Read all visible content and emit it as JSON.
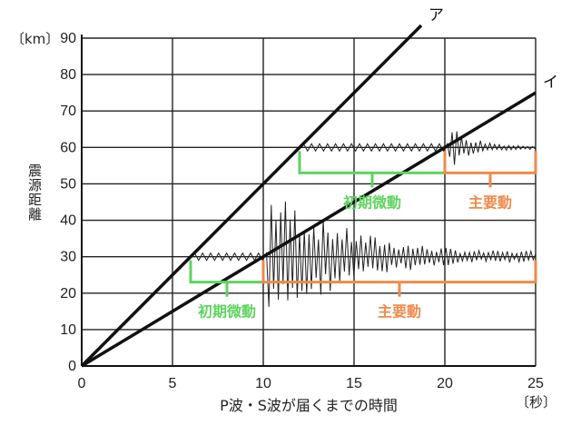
{
  "chart_data": {
    "type": "line",
    "xlabel": "P波・S波が届くまでの時間",
    "x_unit": "〔秒〕",
    "ylabel": "震源距離",
    "y_unit": "〔km〕",
    "xlim": [
      0,
      25
    ],
    "ylim": [
      0,
      90
    ],
    "xticks": [
      0,
      5,
      10,
      15,
      20,
      25
    ],
    "yticks": [
      0,
      10,
      20,
      30,
      40,
      50,
      60,
      70,
      80,
      90
    ],
    "x_tick_labels": [
      "0",
      "5",
      "10",
      "15",
      "20",
      "25"
    ],
    "y_tick_labels": [
      "0",
      "10",
      "20",
      "30",
      "40",
      "50",
      "60",
      "70",
      "80",
      "90"
    ],
    "grid": true,
    "series": [
      {
        "name": "ア",
        "x": [
          0,
          18.7
        ],
        "y": [
          0,
          93.5
        ]
      },
      {
        "name": "イ",
        "x": [
          0,
          25
        ],
        "y": [
          0,
          75
        ]
      }
    ],
    "seismograms": [
      {
        "distance_km": 30,
        "p_arrival_s": 6,
        "s_arrival_s": 10,
        "end_s": 25
      },
      {
        "distance_km": 60,
        "p_arrival_s": 12,
        "s_arrival_s": 20,
        "end_s": 25
      }
    ],
    "annotations": [
      {
        "text": "初期微動",
        "color": "#5fd35f",
        "x_range": [
          6,
          10
        ],
        "at_km": 30
      },
      {
        "text": "主要動",
        "color": "#f08a4b",
        "x_range": [
          10,
          25
        ],
        "at_km": 30
      },
      {
        "text": "初期微動",
        "color": "#5fd35f",
        "x_range": [
          12,
          20
        ],
        "at_km": 60
      },
      {
        "text": "主要動",
        "color": "#f08a4b",
        "x_range": [
          20,
          25
        ],
        "at_km": 60
      }
    ]
  }
}
